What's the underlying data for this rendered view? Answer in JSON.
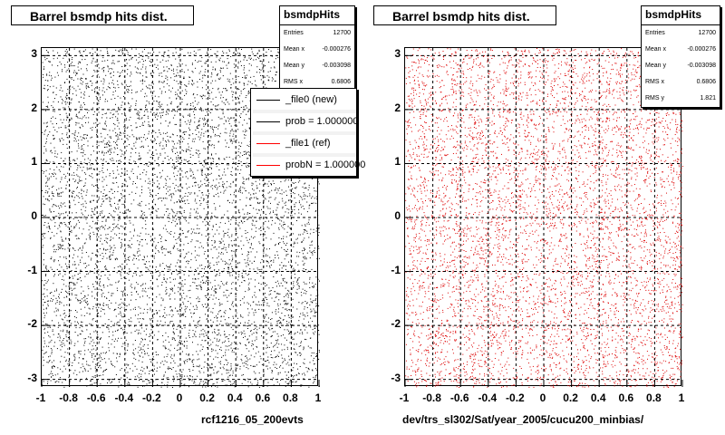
{
  "chart_data": [
    {
      "type": "scatter",
      "title": "Barrel bsmdp hits dist.",
      "xlabel": "rcf1216_05_200evts",
      "ylabel": "",
      "xlim": [
        -1,
        1
      ],
      "ylim": [
        -3.14,
        3.14
      ],
      "x_ticks": [
        "-1",
        "-0.8",
        "-0.6",
        "-0.4",
        "-0.2",
        "0",
        "0.2",
        "0.4",
        "0.6",
        "0.8",
        "1"
      ],
      "y_ticks": [
        "3",
        "2",
        "1",
        "0",
        "-1",
        "-2",
        "-3"
      ],
      "grid": true,
      "marker_color": "#000000",
      "distribution": "uniform",
      "stats": {
        "name": "bsmdpHits",
        "entries_label": "Entries",
        "entries": "12700",
        "mean_x_label": "Mean x",
        "mean_x": "-0.000276",
        "mean_y_label": "Mean y",
        "mean_y": "-0.003098",
        "rms_x_label": "RMS x",
        "rms_x": "0.6806"
      },
      "legend": {
        "placement": "top-right",
        "entries": [
          {
            "label": "_file0 (new)",
            "color": "#000000"
          },
          {
            "label": "prob = 1.000000",
            "color": "#000000"
          },
          {
            "label": "_file1 (ref)",
            "color": "#ff0000"
          },
          {
            "label": "probN = 1.000000",
            "color": "#ff0000"
          }
        ]
      }
    },
    {
      "type": "scatter",
      "title": "Barrel bsmdp hits dist.",
      "xlabel": "dev/trs_sl302/Sat/year_2005/cucu200_minbias/",
      "ylabel": "",
      "xlim": [
        -1,
        1
      ],
      "ylim": [
        -3.14,
        3.14
      ],
      "x_ticks": [
        "-1",
        "-0.8",
        "-0.6",
        "-0.4",
        "-0.2",
        "0",
        "0.2",
        "0.4",
        "0.6",
        "0.8",
        "1"
      ],
      "y_ticks": [
        "3",
        "2",
        "1",
        "0",
        "-1",
        "-2",
        "-3"
      ],
      "grid": true,
      "marker_color": "#dd0000",
      "distribution": "uniform",
      "stats": {
        "name": "bsmdpHits",
        "entries_label": "Entries",
        "entries": "12700",
        "mean_x_label": "Mean x",
        "mean_x": "-0.000276",
        "mean_y_label": "Mean y",
        "mean_y": "-0.003098",
        "rms_x_label": "RMS x",
        "rms_x": "0.6806",
        "rms_y_label": "RMS y",
        "rms_y": "1.821"
      }
    }
  ]
}
